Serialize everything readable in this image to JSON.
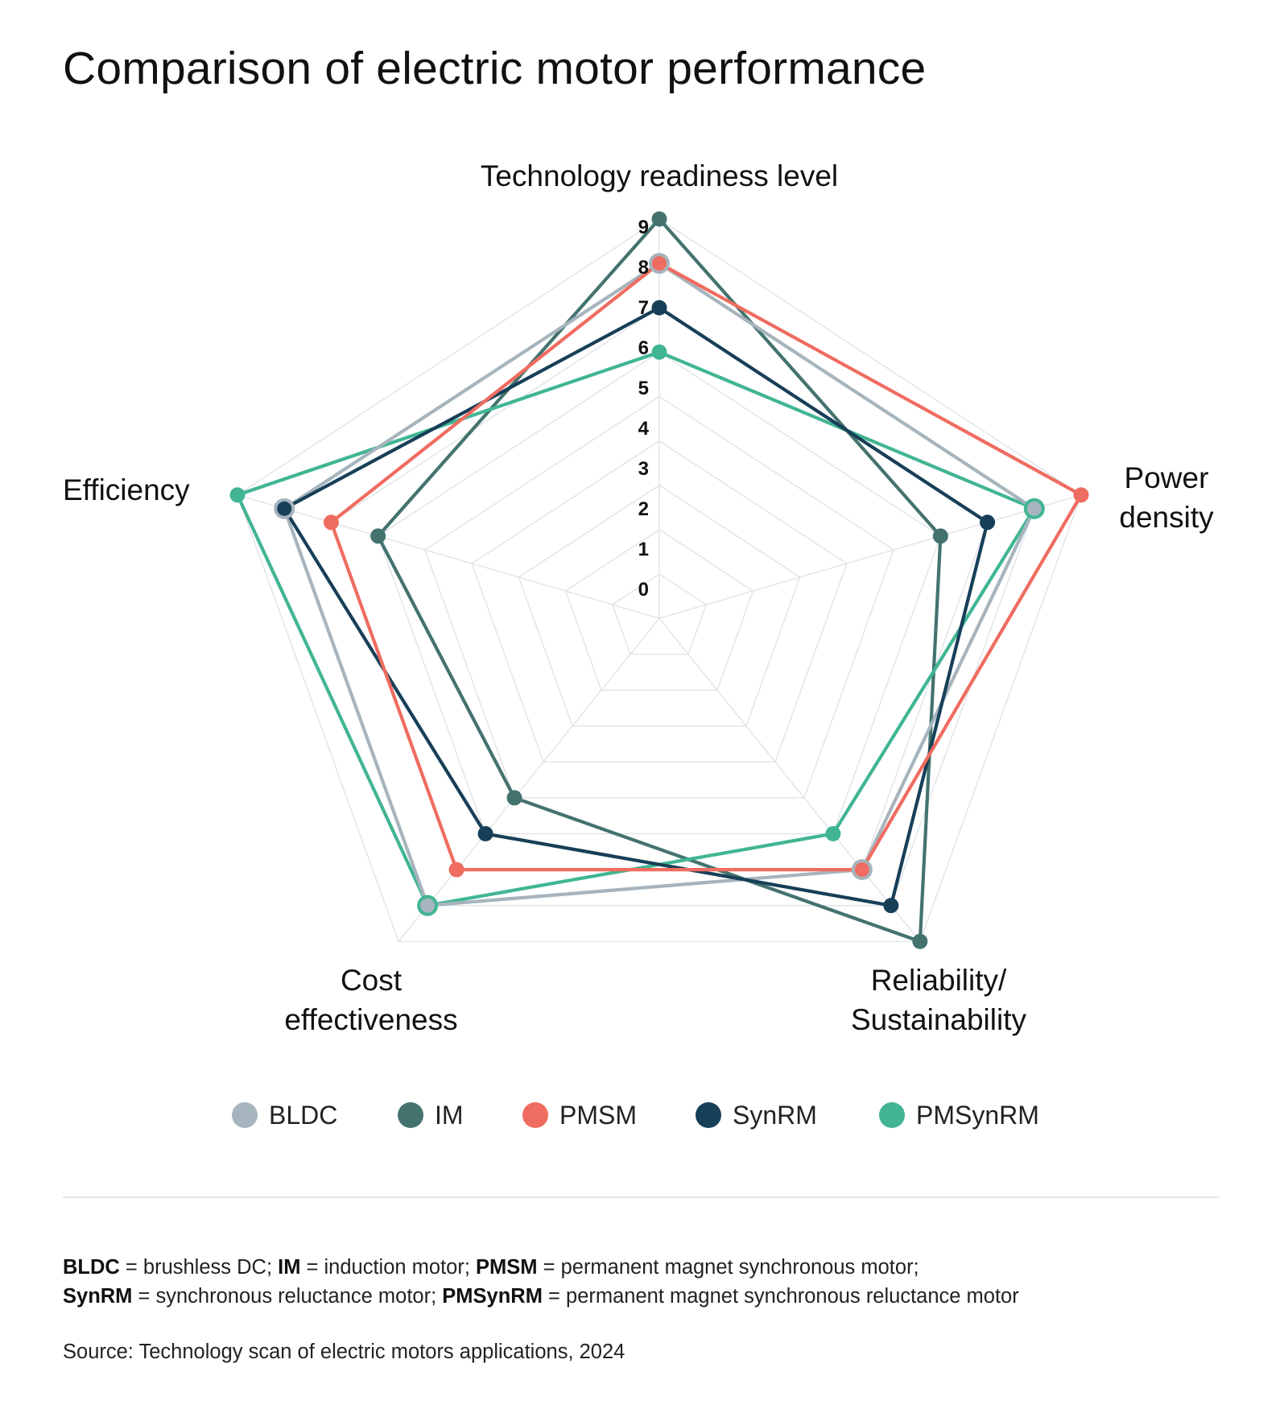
{
  "title": "Comparison of electric motor performance",
  "chart_data": {
    "type": "radar",
    "title": "Comparison of electric motor performance",
    "axes": [
      "Technology readiness level",
      "Power density",
      "Reliability/ Sustainability",
      "Cost effectiveness",
      "Efficiency"
    ],
    "axis_label_lines": [
      [
        "Technology readiness level"
      ],
      [
        "Power",
        "density"
      ],
      [
        "Reliability/",
        "Sustainability"
      ],
      [
        "Cost",
        "effectiveness"
      ],
      [
        "Efficiency"
      ]
    ],
    "range": [
      0,
      9
    ],
    "ticks": [
      "0",
      "1",
      "2",
      "3",
      "4",
      "5",
      "6",
      "7",
      "8",
      "9"
    ],
    "grid": true,
    "legend_position": "bottom",
    "series": [
      {
        "name": "IM",
        "color": "#44736f",
        "values": [
          9,
          6,
          9,
          5,
          6
        ]
      },
      {
        "name": "PMSynRM",
        "color": "#41b594",
        "values": [
          6,
          8,
          6,
          8,
          9
        ]
      },
      {
        "name": "BLDC",
        "color": "#a6b4bd",
        "values": [
          8,
          8,
          7,
          8,
          8
        ]
      },
      {
        "name": "SynRM",
        "color": "#173f58",
        "values": [
          7,
          7,
          8,
          6,
          8
        ]
      },
      {
        "name": "PMSM",
        "color": "#ef6c60",
        "values": [
          8,
          9,
          7,
          7,
          7
        ]
      }
    ]
  },
  "legend": [
    {
      "name": "BLDC",
      "color": "#a6b4bd"
    },
    {
      "name": "IM",
      "color": "#44736f"
    },
    {
      "name": "PMSM",
      "color": "#ef6c60"
    },
    {
      "name": "SynRM",
      "color": "#173f58"
    },
    {
      "name": "PMSynRM",
      "color": "#41b594"
    }
  ],
  "footnote": {
    "line1": [
      {
        "abbr": "BLDC",
        "text": " = brushless DC; "
      },
      {
        "abbr": "IM",
        "text": " = induction motor; "
      },
      {
        "abbr": "PMSM",
        "text": " = permanent magnet synchronous motor;"
      }
    ],
    "line2": [
      {
        "abbr": "SynRM",
        "text": " = synchronous reluctance motor; "
      },
      {
        "abbr": "PMSynRM",
        "text": " = permanent magnet synchronous reluctance motor"
      }
    ]
  },
  "source": "Source: Technology scan of electric motors applications, 2024"
}
